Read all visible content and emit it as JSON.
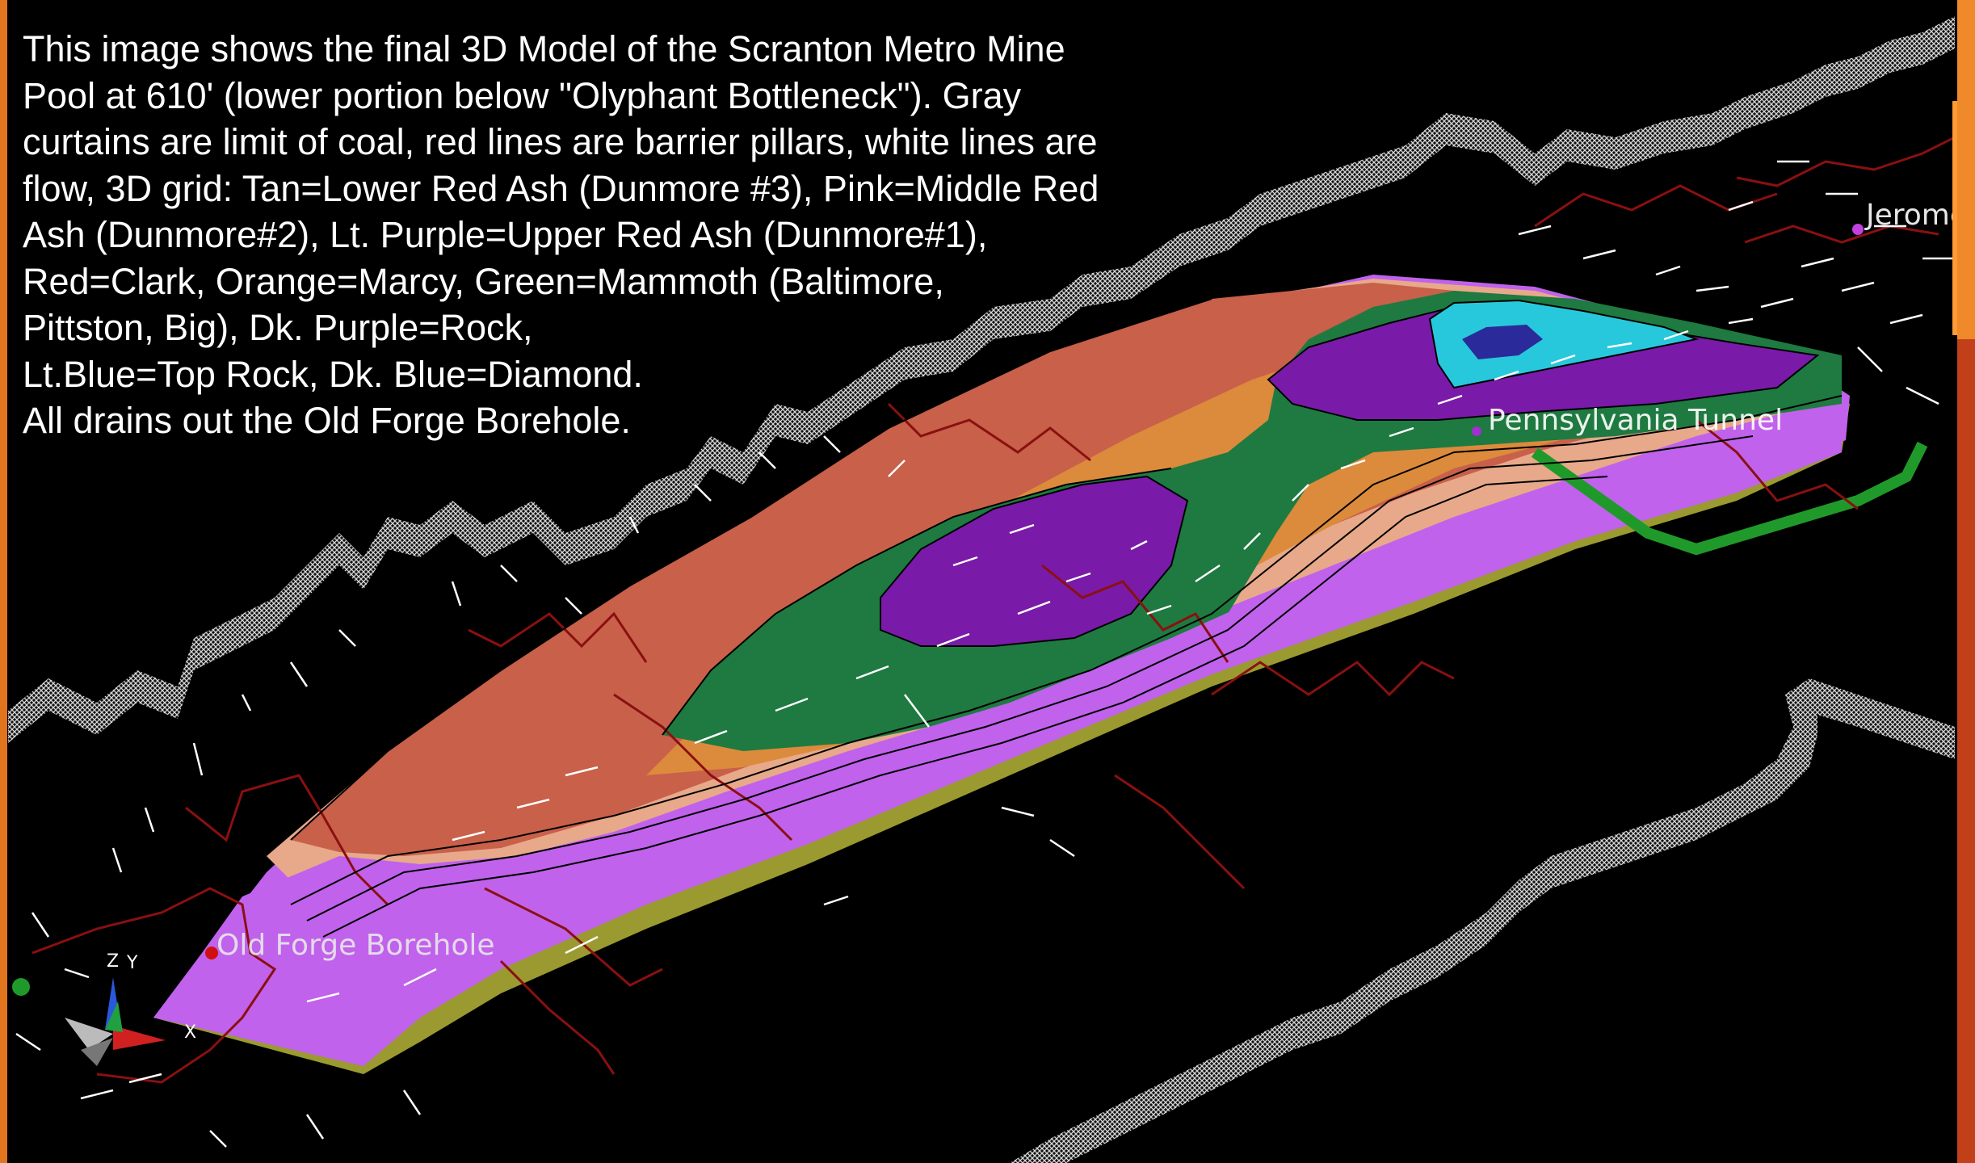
{
  "caption": {
    "lines": [
      "This image shows the final 3D Model of the Scranton Metro Mine",
      "Pool at 610' (lower portion below \"Olyphant Bottleneck\").  Gray",
      "curtains are limit of coal, red lines are barrier pillars, white lines are",
      "flow, 3D grid: Tan=Lower Red Ash (Dunmore #3), Pink=Middle Red",
      "Ash (Dunmore#2), Lt. Purple=Upper Red Ash (Dunmore#1),",
      "Red=Clark, Orange=Marcy, Green=Mammoth (Baltimore,",
      "Pittston, Big), Dk. Purple=Rock,",
      "Lt.Blue=Top Rock, Dk. Blue=Diamond.",
      "All drains out the Old Forge Borehole."
    ]
  },
  "labels": {
    "jerome": "Jerome",
    "pennsylvania_tunnel": "Pennsylvania Tunnel",
    "old_forge_borehole": "Old Forge Borehole"
  },
  "axes": {
    "x": "X",
    "y": "Y",
    "z": "Z"
  },
  "colors": {
    "background": "#000000",
    "tan": "#e7a98a",
    "pink": "#c8604a",
    "light_purple": "#c062ec",
    "red": "#c8604a",
    "orange": "#dc8a3c",
    "green": "#1e7a40",
    "dark_purple": "#7a1aa8",
    "light_blue": "#28c8dc",
    "dark_blue": "#2a2a9a",
    "olive": "#9a9a30",
    "barrier_pillar": "#8a1010",
    "frame_orange": "#e0751e",
    "frame_red": "#c1401a"
  }
}
